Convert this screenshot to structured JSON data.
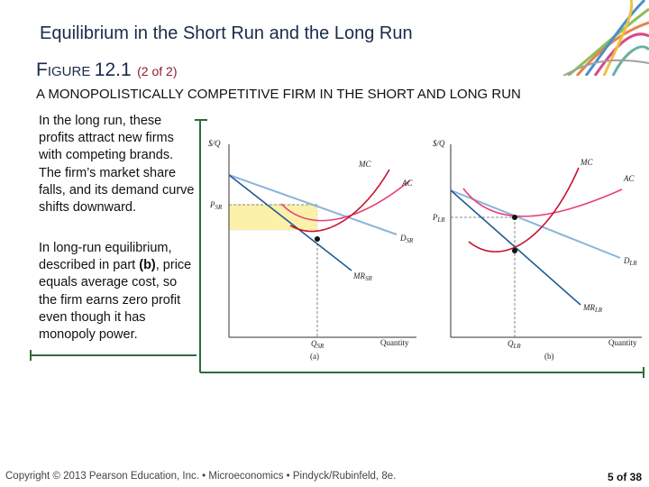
{
  "header": {
    "title": "Equilibrium in the Short Run and the Long Run",
    "figure_prefix_big": "F",
    "figure_prefix_small": "IGURE",
    "figure_number": "12.1",
    "figure_part": "(2 of 2)",
    "subtitle": "A MONOPOLISTICALLY COMPETITIVE FIRM IN THE SHORT AND LONG RUN"
  },
  "text": {
    "para1": "In the long run, these profits attract new firms with competing brands. The firm’s market share falls, and its demand curve shifts downward.",
    "para2_before": "In long-run equilibrium, described in part ",
    "para2_bold": "(b)",
    "para2_after": ", price equals average cost, so the firm earns zero profit even though it has monopoly power."
  },
  "panel_a": {
    "y_axis": "$/Q",
    "x_axis": "Quantity",
    "price_label": "P",
    "price_sub": "SR",
    "q_label": "Q",
    "q_sub": "SR",
    "mc": "MC",
    "ac": "AC",
    "demand": "D",
    "demand_sub": "SR",
    "mr": "MR",
    "mr_sub": "SR",
    "caption": "(a)"
  },
  "panel_b": {
    "y_axis": "$/Q",
    "x_axis": "Quantity",
    "price_label": "P",
    "price_sub": "LR",
    "q_label": "Q",
    "q_sub": "LR",
    "mc": "MC",
    "ac": "AC",
    "demand": "D",
    "demand_sub": "LR",
    "mr": "MR",
    "mr_sub": "LR",
    "caption": "(b)"
  },
  "footer": {
    "copyright": "Copyright © 2013 Pearson Education, Inc. • Microeconomics • Pindyck/Rubinfeld, 8e.",
    "page": "5 of 38"
  },
  "colors": {
    "demand": "#8ab4d8",
    "mr": "#1f5a94",
    "mc": "#c5122d",
    "ac": "#e83e7a",
    "profit_fill": "#fbf1a8",
    "bracket": "#2f6b3a",
    "title": "#1a2a4a"
  }
}
